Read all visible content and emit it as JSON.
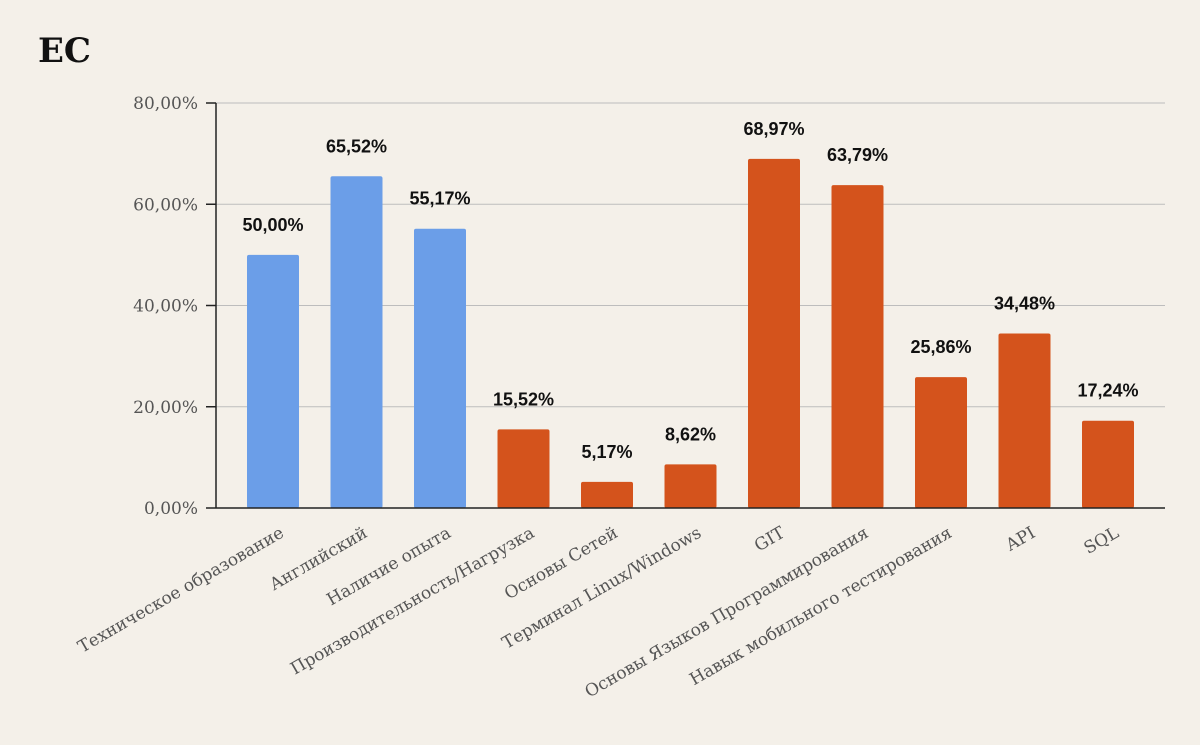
{
  "colors": {
    "background": "#f4f0e9",
    "blue": "#6b9ee8",
    "orange": "#d4531c",
    "grid": "#bdbdbd",
    "axis": "#222222"
  },
  "chart_data": {
    "type": "bar",
    "title": "ЕС",
    "xlabel": "",
    "ylabel": "",
    "ylim": [
      0,
      80
    ],
    "yticks": [
      {
        "value": 0,
        "label": "0,00%"
      },
      {
        "value": 20,
        "label": "20,00%"
      },
      {
        "value": 40,
        "label": "40,00%"
      },
      {
        "value": 60,
        "label": "60,00%"
      },
      {
        "value": 80,
        "label": "80,00%"
      }
    ],
    "grid": true,
    "legend": "none",
    "categories": [
      "Техническое образование",
      "Английский",
      "Наличие опыта",
      "Производительность/Нагрузка",
      "Основы Сетей",
      "Терминал Linux/Windows",
      "GIT",
      "Основы Языков Программирования",
      "Навык мобильного тестирования",
      "API",
      "SQL"
    ],
    "values": [
      50.0,
      65.52,
      55.17,
      15.52,
      5.17,
      8.62,
      68.97,
      63.79,
      25.86,
      34.48,
      17.24
    ],
    "value_labels": [
      "50,00%",
      "65,52%",
      "55,17%",
      "15,52%",
      "5,17%",
      "8,62%",
      "68,97%",
      "63,79%",
      "25,86%",
      "34,48%",
      "17,24%"
    ],
    "bar_colors": [
      "blue",
      "blue",
      "blue",
      "orange",
      "orange",
      "orange",
      "orange",
      "orange",
      "orange",
      "orange",
      "orange"
    ]
  }
}
